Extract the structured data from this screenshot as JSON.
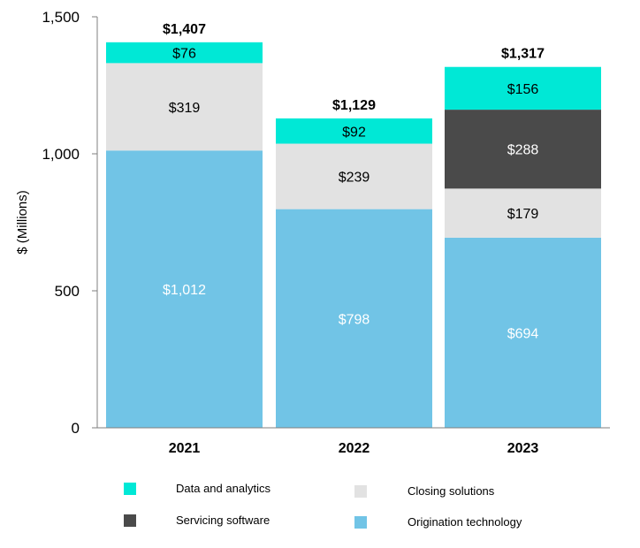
{
  "chart_data": {
    "type": "bar",
    "stacked": true,
    "categories": [
      "2021",
      "2022",
      "2023"
    ],
    "ylabel": "$ (Millions)",
    "ylim": [
      0,
      1500
    ],
    "yticks": [
      "0",
      "500",
      "1,000",
      "1,500"
    ],
    "ytick_values": [
      0,
      500,
      1000,
      1500
    ],
    "series": [
      {
        "name": "Origination technology",
        "values": [
          1012,
          798,
          694
        ],
        "labels": [
          "$1,012",
          "$798",
          "$694"
        ],
        "color": "#71C4E6",
        "label_color": "#ffffff"
      },
      {
        "name": "Closing solutions",
        "values": [
          319,
          239,
          179
        ],
        "labels": [
          "$319",
          "$239",
          "$179"
        ],
        "color": "#E2E2E2",
        "label_color": "#000000"
      },
      {
        "name": "Servicing software",
        "values": [
          0,
          0,
          288
        ],
        "labels": [
          "",
          "",
          "$288"
        ],
        "color": "#4A4A4A",
        "label_color": "#ffffff"
      },
      {
        "name": "Data and analytics",
        "values": [
          76,
          92,
          156
        ],
        "labels": [
          "$76",
          "$92",
          "$156"
        ],
        "color": "#00E8D6",
        "label_color": "#000000"
      }
    ],
    "totals": [
      1407,
      1129,
      1317
    ],
    "total_labels": [
      "$1,407",
      "$1,129",
      "$1,317"
    ],
    "legend_position": "bottom",
    "grid": false
  },
  "legend": [
    {
      "label": "Data and analytics",
      "color": "#00E8D6"
    },
    {
      "label": "Closing solutions",
      "color": "#E2E2E2"
    },
    {
      "label": "Servicing software",
      "color": "#4A4A4A"
    },
    {
      "label": "Origination technology",
      "color": "#71C4E6"
    }
  ]
}
